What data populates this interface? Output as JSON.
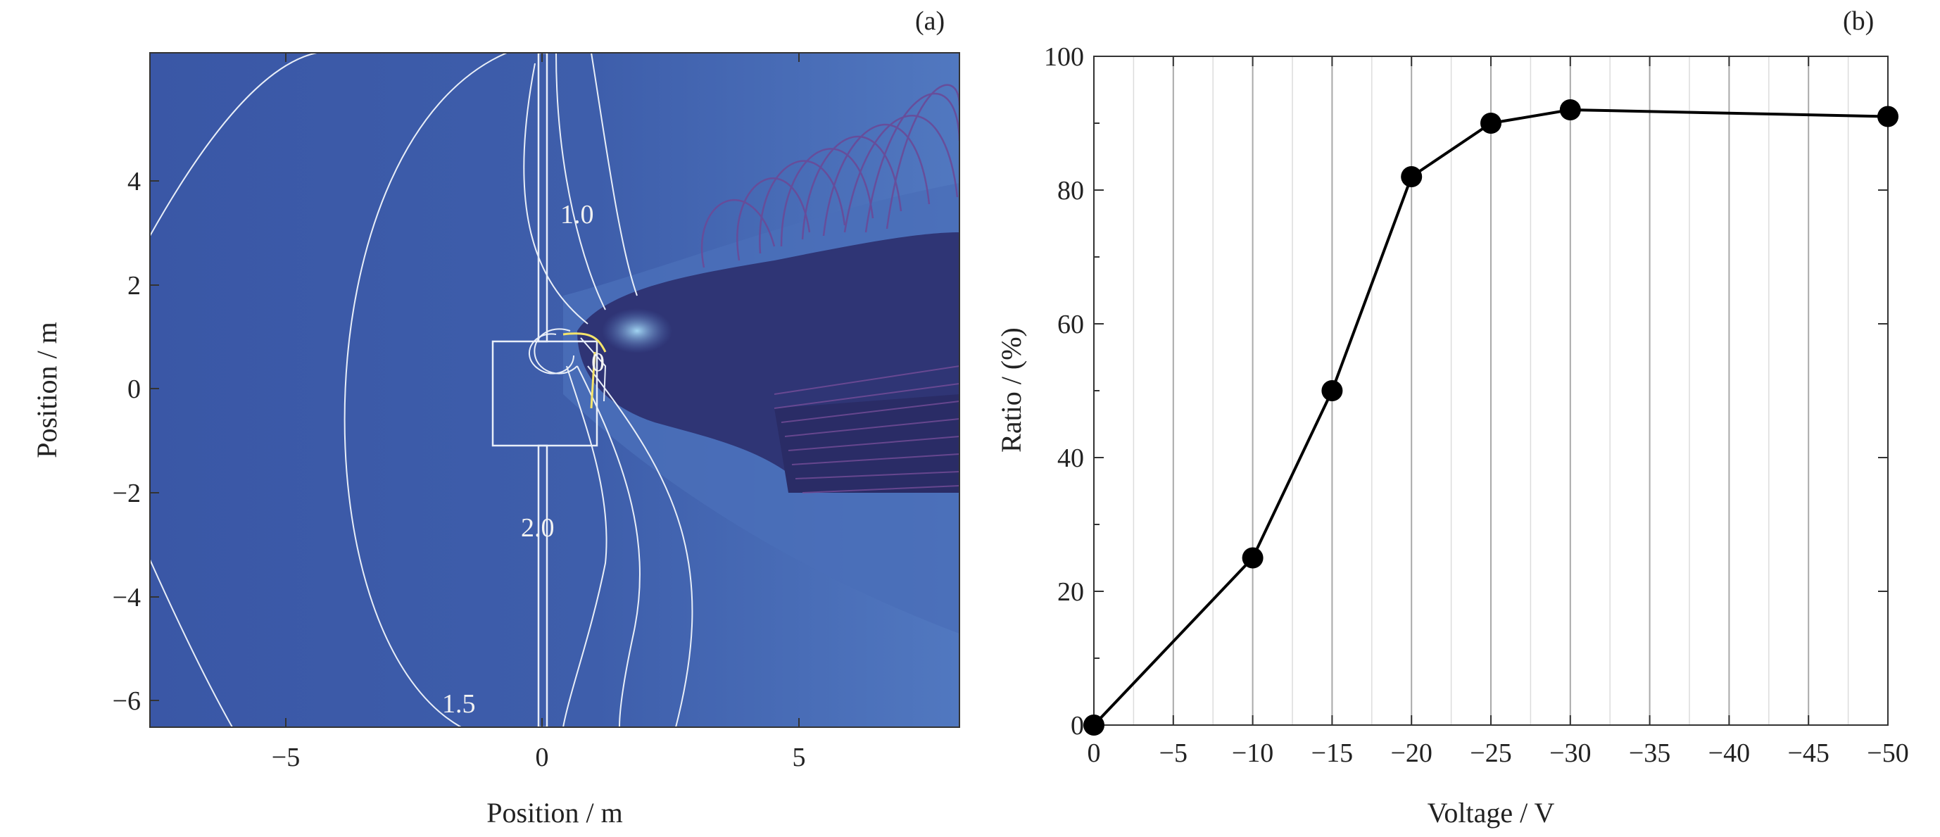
{
  "panel_a": {
    "label": "(a)",
    "xlabel": "Position / m",
    "ylabel": "Position / m",
    "x_ticks": [
      "−5",
      "0",
      "5"
    ],
    "y_ticks": [
      "4",
      "2",
      "0",
      "−2",
      "−4",
      "−6"
    ],
    "contour_labels": [
      "1.0",
      "0",
      "2.0",
      "1.5"
    ],
    "colors": {
      "background": "#3a57a6",
      "field_light": "#4f74bd",
      "plume": "#2c2f6e",
      "contour": "#e8eef8"
    }
  },
  "panel_b": {
    "label": "(b)",
    "xlabel": "Voltage / V",
    "ylabel": "Ratio / (%)",
    "x_ticks": [
      "0",
      "−5",
      "−10",
      "−15",
      "−20",
      "−25",
      "−30",
      "−35",
      "−40",
      "−45",
      "−50"
    ],
    "y_ticks": [
      "0",
      "20",
      "40",
      "60",
      "80",
      "100"
    ]
  },
  "chart_data": [
    {
      "type": "heatmap",
      "xlabel": "Position / m",
      "ylabel": "Position / m",
      "xlim": [
        -7.6,
        8.2
      ],
      "ylim": [
        -6.5,
        6.5
      ],
      "contour_levels": [
        1.0,
        0,
        2.0,
        1.5
      ]
    },
    {
      "type": "line",
      "xlabel": "Voltage / V",
      "ylabel": "Ratio / (%)",
      "x": [
        0,
        -10,
        -15,
        -20,
        -25,
        -30,
        -50
      ],
      "y": [
        0,
        25,
        50,
        82,
        90,
        92,
        91
      ],
      "xlim": [
        0,
        -50
      ],
      "ylim": [
        0,
        100
      ],
      "grid": true
    }
  ]
}
